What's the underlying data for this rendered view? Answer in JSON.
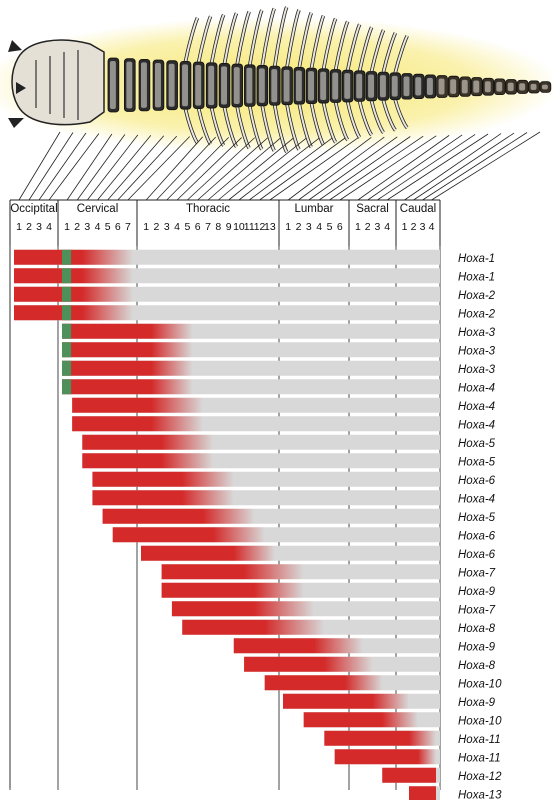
{
  "regions": [
    {
      "name": "Occiptital",
      "count": 4,
      "numbers": [
        "1",
        "2",
        "3",
        "4"
      ]
    },
    {
      "name": "Cervical",
      "count": 7,
      "numbers": [
        "1",
        "2",
        "3",
        "4",
        "5",
        "6",
        "7"
      ]
    },
    {
      "name": "Thoracic",
      "count": 13,
      "numbers": [
        "1",
        "2",
        "3",
        "4",
        "5",
        "6",
        "7",
        "8",
        "9",
        "10",
        "11",
        "12",
        "13"
      ]
    },
    {
      "name": "Lumbar",
      "count": 6,
      "numbers": [
        "1",
        "2",
        "3",
        "4",
        "5",
        "6"
      ]
    },
    {
      "name": "Sacral",
      "count": 4,
      "numbers": [
        "1",
        "2",
        "3",
        "4"
      ]
    },
    {
      "name": "Caudal",
      "count": 4,
      "numbers": [
        "1",
        "2",
        "3",
        "4"
      ]
    }
  ],
  "colors": {
    "expression": "#d42a2a",
    "anterior_boundary": "#4f8f5a",
    "background_bar": "#d8d8d8",
    "skeleton_glow": "#f3e45a",
    "bone": "#e9e6df"
  },
  "genes": [
    {
      "label": "Hoxa-1",
      "start_vertebra": 1,
      "solid_until": 6,
      "fade_until": 11,
      "green_at": 5
    },
    {
      "label": "Hoxa-1",
      "start_vertebra": 1,
      "solid_until": 6,
      "fade_until": 11,
      "green_at": 5
    },
    {
      "label": "Hoxa-2",
      "start_vertebra": 1,
      "solid_until": 6,
      "fade_until": 11,
      "green_at": 5
    },
    {
      "label": "Hoxa-2",
      "start_vertebra": 1,
      "solid_until": 6,
      "fade_until": 11,
      "green_at": 5
    },
    {
      "label": "Hoxa-3",
      "start_vertebra": 5,
      "solid_until": 12,
      "fade_until": 16,
      "green_at": 5
    },
    {
      "label": "Hoxa-3",
      "start_vertebra": 5,
      "solid_until": 12,
      "fade_until": 16,
      "green_at": 5
    },
    {
      "label": "Hoxa-3",
      "start_vertebra": 5,
      "solid_until": 12,
      "fade_until": 16,
      "green_at": 5
    },
    {
      "label": "Hoxa-4",
      "start_vertebra": 5,
      "solid_until": 12,
      "fade_until": 16,
      "green_at": 5
    },
    {
      "label": "Hoxa-4",
      "start_vertebra": 6,
      "solid_until": 12,
      "fade_until": 17
    },
    {
      "label": "Hoxa-4",
      "start_vertebra": 6,
      "solid_until": 12,
      "fade_until": 17
    },
    {
      "label": "Hoxa-5",
      "start_vertebra": 7,
      "solid_until": 13,
      "fade_until": 18
    },
    {
      "label": "Hoxa-5",
      "start_vertebra": 7,
      "solid_until": 13,
      "fade_until": 18
    },
    {
      "label": "Hoxa-6",
      "start_vertebra": 8,
      "solid_until": 15,
      "fade_until": 20
    },
    {
      "label": "Hoxa-4",
      "start_vertebra": 8,
      "solid_until": 15,
      "fade_until": 20
    },
    {
      "label": "Hoxa-5",
      "start_vertebra": 9,
      "solid_until": 17,
      "fade_until": 22
    },
    {
      "label": "Hoxa-6",
      "start_vertebra": 10,
      "solid_until": 18,
      "fade_until": 23
    },
    {
      "label": "Hoxa-6",
      "start_vertebra": 12,
      "solid_until": 20,
      "fade_until": 24
    },
    {
      "label": "Hoxa-7",
      "start_vertebra": 14,
      "solid_until": 21,
      "fade_until": 26
    },
    {
      "label": "Hoxa-9",
      "start_vertebra": 14,
      "solid_until": 22,
      "fade_until": 26
    },
    {
      "label": "Hoxa-7",
      "start_vertebra": 15,
      "solid_until": 22,
      "fade_until": 27
    },
    {
      "label": "Hoxa-8",
      "start_vertebra": 16,
      "solid_until": 23,
      "fade_until": 28
    },
    {
      "label": "Hoxa-9",
      "start_vertebra": 21,
      "solid_until": 27,
      "fade_until": 31
    },
    {
      "label": "Hoxa-8",
      "start_vertebra": 22,
      "solid_until": 28,
      "fade_until": 32
    },
    {
      "label": "Hoxa-10",
      "start_vertebra": 24,
      "solid_until": 30,
      "fade_until": 33
    },
    {
      "label": "Hoxa-9",
      "start_vertebra": 25,
      "solid_until": 32,
      "fade_until": 35
    },
    {
      "label": "Hoxa-10",
      "start_vertebra": 27,
      "solid_until": 33,
      "fade_until": 36
    },
    {
      "label": "Hoxa-11",
      "start_vertebra": 29,
      "solid_until": 35,
      "fade_until": 38
    },
    {
      "label": "Hoxa-11",
      "start_vertebra": 30,
      "solid_until": 36,
      "fade_until": 38
    },
    {
      "label": "Hoxa-12",
      "start_vertebra": 34,
      "solid_until": 38,
      "fade_until": 38
    },
    {
      "label": "Hoxa-13",
      "start_vertebra": 36,
      "solid_until": 38,
      "fade_until": 38
    }
  ]
}
